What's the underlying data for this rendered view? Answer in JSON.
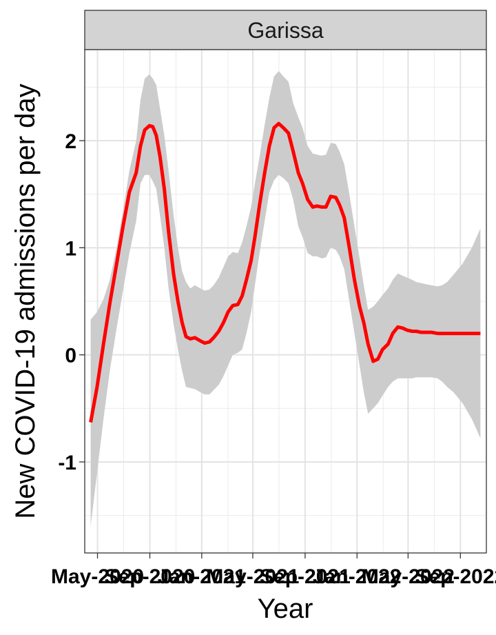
{
  "chart_data": {
    "type": "line",
    "panel_title": "Garissa",
    "xlabel": "Year",
    "ylabel": "New COVID-19 admissions per day",
    "xlim": [
      "2020-04-01",
      "2022-11-01"
    ],
    "ylim": [
      -1.85,
      2.85
    ],
    "x_ticks": [
      {
        "date": "2020-05-01",
        "label": "May-2020"
      },
      {
        "date": "2020-09-01",
        "label": "Sep-2020"
      },
      {
        "date": "2021-01-01",
        "label": "Jan-2021"
      },
      {
        "date": "2021-05-01",
        "label": "May-2021"
      },
      {
        "date": "2021-09-01",
        "label": "Sep-2021"
      },
      {
        "date": "2022-01-01",
        "label": "Jan-2022"
      },
      {
        "date": "2022-05-01",
        "label": "May-2022"
      },
      {
        "date": "2022-09-01",
        "label": "Sep-2022"
      }
    ],
    "y_ticks": [
      -1,
      0,
      1,
      2
    ],
    "y_tick_labels": [
      "-1",
      "0",
      "1",
      "2"
    ],
    "grid": true,
    "line_color": "#ff0000",
    "ribbon_color": "#cccccc",
    "panel_strip_color": "#d3d3d3",
    "series": [
      {
        "x": [
          "2020-04-15",
          "2020-04-30",
          "2020-05-15",
          "2020-05-30",
          "2020-06-15",
          "2020-06-30",
          "2020-07-15",
          "2020-07-31",
          "2020-08-10",
          "2020-08-20",
          "2020-08-31",
          "2020-09-08",
          "2020-09-16",
          "2020-09-25",
          "2020-10-05",
          "2020-10-15",
          "2020-10-27",
          "2020-11-06",
          "2020-11-16",
          "2020-11-25",
          "2020-12-05",
          "2020-12-16",
          "2020-12-29",
          "2021-01-08",
          "2021-01-19",
          "2021-01-29",
          "2021-02-10",
          "2021-02-21",
          "2021-03-04",
          "2021-03-15",
          "2021-03-27",
          "2021-04-06",
          "2021-04-16",
          "2021-04-27",
          "2021-05-06",
          "2021-05-17",
          "2021-05-29",
          "2021-06-09",
          "2021-06-20",
          "2021-07-01",
          "2021-07-12",
          "2021-07-24",
          "2021-08-04",
          "2021-08-16",
          "2021-08-26",
          "2021-09-07",
          "2021-09-19",
          "2021-09-29",
          "2021-10-10",
          "2021-10-20",
          "2021-10-31",
          "2021-11-12",
          "2021-11-21",
          "2021-12-02",
          "2021-12-14",
          "2021-12-26",
          "2022-01-07",
          "2022-01-17",
          "2022-01-27",
          "2022-02-08",
          "2022-02-19",
          "2022-03-02",
          "2022-03-15",
          "2022-03-26",
          "2022-04-07",
          "2022-04-18",
          "2022-04-29",
          "2022-05-11",
          "2022-05-20",
          "2022-06-01",
          "2022-06-11",
          "2022-06-25",
          "2022-07-09",
          "2022-07-20",
          "2022-08-01",
          "2022-08-16",
          "2022-09-06",
          "2022-09-28",
          "2022-10-18"
        ],
        "y": [
          -0.63,
          -0.3,
          0.1,
          0.48,
          0.85,
          1.2,
          1.52,
          1.7,
          1.95,
          2.1,
          2.14,
          2.13,
          2.05,
          1.85,
          1.55,
          1.15,
          0.75,
          0.5,
          0.3,
          0.17,
          0.15,
          0.16,
          0.13,
          0.11,
          0.12,
          0.16,
          0.22,
          0.3,
          0.4,
          0.46,
          0.47,
          0.55,
          0.7,
          0.88,
          1.1,
          1.4,
          1.7,
          1.95,
          2.12,
          2.16,
          2.12,
          2.07,
          1.9,
          1.7,
          1.6,
          1.45,
          1.38,
          1.39,
          1.38,
          1.38,
          1.48,
          1.47,
          1.4,
          1.28,
          1.0,
          0.7,
          0.45,
          0.3,
          0.1,
          -0.06,
          -0.04,
          0.05,
          0.1,
          0.2,
          0.26,
          0.25,
          0.23,
          0.22,
          0.22,
          0.21,
          0.21,
          0.21,
          0.2,
          0.2,
          0.2,
          0.2,
          0.2,
          0.2,
          0.2
        ],
        "lower": [
          -1.6,
          -1.1,
          -0.6,
          -0.15,
          0.25,
          0.6,
          0.95,
          1.25,
          1.6,
          1.68,
          1.68,
          1.62,
          1.55,
          1.3,
          1.0,
          0.62,
          0.28,
          0.05,
          -0.15,
          -0.3,
          -0.31,
          -0.32,
          -0.35,
          -0.37,
          -0.37,
          -0.33,
          -0.28,
          -0.2,
          -0.1,
          0.0,
          0.02,
          0.05,
          0.2,
          0.4,
          0.65,
          0.95,
          1.25,
          1.52,
          1.63,
          1.68,
          1.65,
          1.6,
          1.45,
          1.2,
          1.1,
          0.95,
          0.92,
          0.92,
          0.9,
          0.91,
          1.0,
          0.98,
          0.92,
          0.8,
          0.5,
          0.2,
          -0.1,
          -0.35,
          -0.55,
          -0.5,
          -0.45,
          -0.38,
          -0.3,
          -0.25,
          -0.22,
          -0.22,
          -0.22,
          -0.22,
          -0.21,
          -0.21,
          -0.21,
          -0.21,
          -0.22,
          -0.25,
          -0.3,
          -0.35,
          -0.45,
          -0.6,
          -0.78
        ],
        "upper": [
          0.33,
          0.4,
          0.52,
          0.7,
          1.0,
          1.35,
          1.72,
          2.0,
          2.38,
          2.58,
          2.62,
          2.58,
          2.52,
          2.3,
          2.05,
          1.72,
          1.3,
          1.0,
          0.78,
          0.68,
          0.62,
          0.65,
          0.62,
          0.6,
          0.61,
          0.65,
          0.72,
          0.82,
          0.92,
          0.96,
          0.95,
          1.05,
          1.2,
          1.38,
          1.6,
          1.85,
          2.15,
          2.4,
          2.6,
          2.65,
          2.6,
          2.55,
          2.35,
          2.22,
          2.12,
          1.95,
          1.88,
          1.87,
          1.86,
          1.87,
          1.98,
          1.97,
          1.9,
          1.78,
          1.5,
          1.2,
          0.9,
          0.65,
          0.42,
          0.45,
          0.5,
          0.56,
          0.62,
          0.7,
          0.76,
          0.74,
          0.72,
          0.7,
          0.68,
          0.67,
          0.66,
          0.65,
          0.64,
          0.65,
          0.68,
          0.75,
          0.85,
          1.0,
          1.18
        ]
      }
    ]
  }
}
